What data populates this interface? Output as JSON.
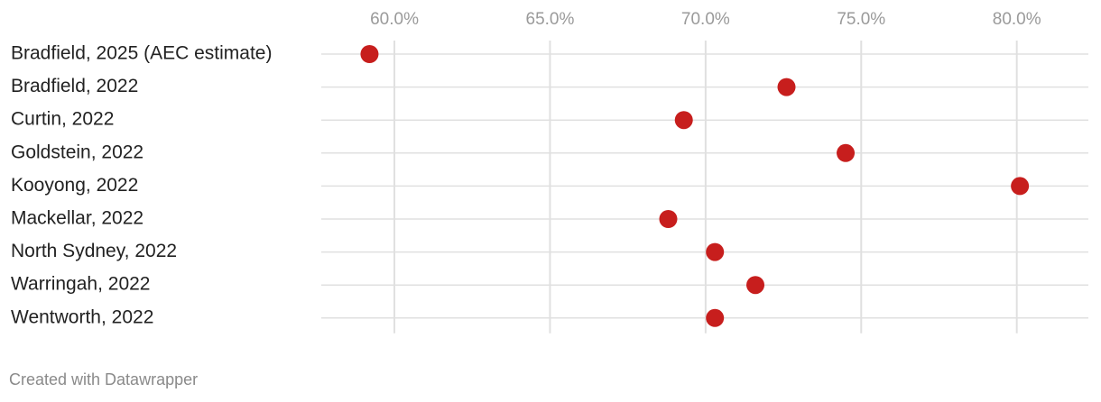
{
  "chart_data": {
    "type": "dot",
    "categories": [
      "Bradfield, 2025 (AEC estimate)",
      "Bradfield, 2022",
      "Curtin, 2022",
      "Goldstein, 2022",
      "Kooyong, 2022",
      "Mackellar, 2022",
      "North Sydney, 2022",
      "Warringah, 2022",
      "Wentworth, 2022"
    ],
    "values": [
      59.2,
      72.6,
      69.3,
      74.5,
      80.1,
      68.8,
      70.3,
      71.6,
      70.3
    ],
    "color": "#c71e1d",
    "xlim": [
      57.65,
      82.3
    ],
    "xticks": [
      {
        "value": 60,
        "label": "60.0%"
      },
      {
        "value": 65,
        "label": "65.0%"
      },
      {
        "value": 70,
        "label": "70.0%"
      },
      {
        "value": 75,
        "label": "75.0%"
      },
      {
        "value": 80,
        "label": "80.0%"
      }
    ],
    "grid": true,
    "credit": "Created with Datawrapper"
  }
}
